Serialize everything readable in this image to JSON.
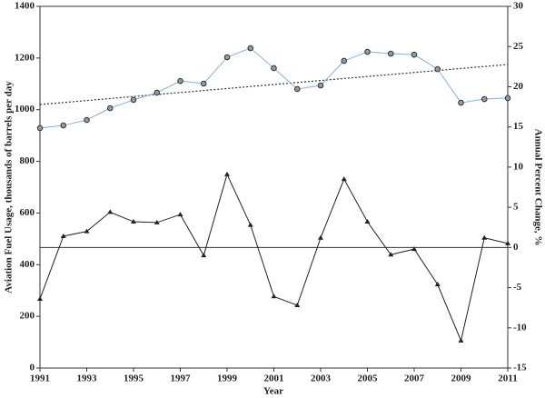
{
  "chart_data": {
    "type": "line",
    "xlabel": "Year",
    "ylabel": "Aviation Fuel Usage, thousands of barrels per day",
    "y2label": "Annual Percent Change, %",
    "x": [
      1991,
      1992,
      1993,
      1994,
      1995,
      1996,
      1997,
      1998,
      1999,
      2000,
      2001,
      2002,
      2003,
      2004,
      2005,
      2006,
      2007,
      2008,
      2009,
      2010,
      2011
    ],
    "xlim": [
      1991,
      2011
    ],
    "xticks": [
      1991,
      1993,
      1995,
      1997,
      1999,
      2001,
      2003,
      2005,
      2007,
      2009,
      2011
    ],
    "ylim": [
      0,
      1400
    ],
    "yticks": [
      0,
      200,
      400,
      600,
      800,
      1000,
      1200,
      1400
    ],
    "y2lim": [
      -15,
      30
    ],
    "y2ticks": [
      -15,
      -10,
      -5,
      0,
      5,
      10,
      15,
      20,
      25,
      30
    ],
    "y2_hline": 0,
    "series": [
      {
        "color": "#7fb2e5",
        "marker": "circle",
        "axis": "y",
        "values": [
          929,
          939,
          960,
          1006,
          1038,
          1066,
          1111,
          1101,
          1203,
          1238,
          1161,
          1080,
          1094,
          1189,
          1224,
          1217,
          1213,
          1157,
          1027,
          1041,
          1045
        ]
      },
      {
        "color": "#222222",
        "marker": "triangle",
        "axis": "y2",
        "values": [
          -6.4,
          1.4,
          2.0,
          4.4,
          3.2,
          3.1,
          4.1,
          -1.0,
          9.1,
          2.8,
          -6.1,
          -7.2,
          1.2,
          8.5,
          3.2,
          -0.9,
          -0.2,
          -4.6,
          -11.6,
          1.2,
          0.5
        ]
      }
    ],
    "trend": {
      "color": "#333333",
      "x": [
        1991,
        2011
      ],
      "values": [
        1020,
        1175
      ]
    }
  }
}
